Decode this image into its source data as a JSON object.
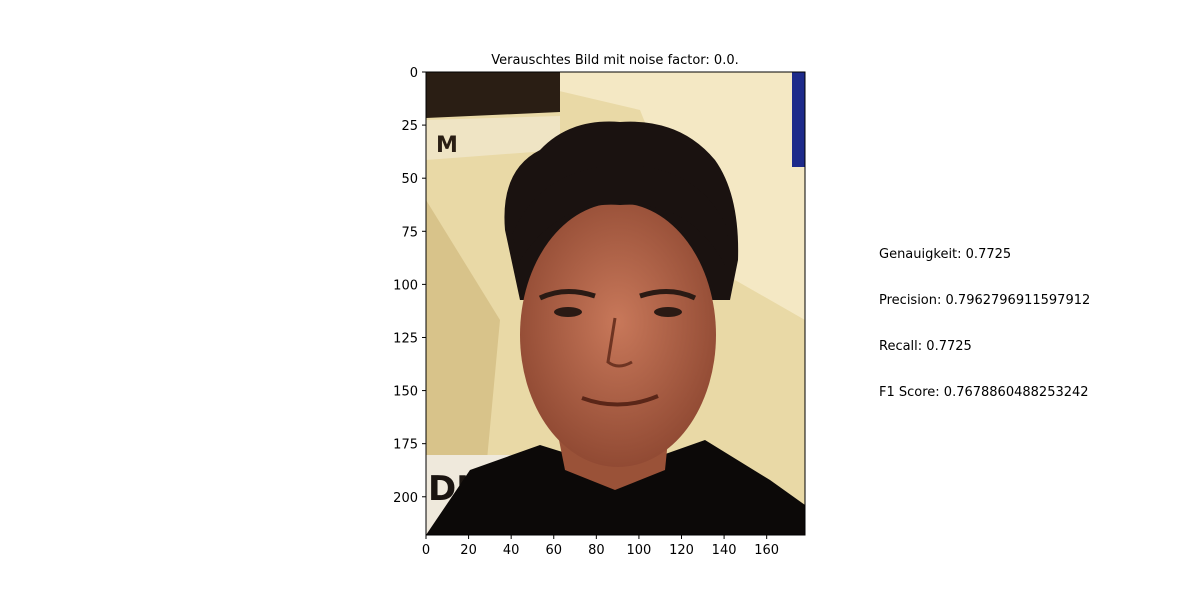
{
  "chart_data": {
    "type": "image",
    "title": "Verauschtes Bild mit noise factor: 0.0.",
    "xlim": [
      0,
      178
    ],
    "ylim": [
      218,
      0
    ],
    "x_ticks": [
      0,
      20,
      40,
      60,
      80,
      100,
      120,
      140,
      160
    ],
    "y_ticks": [
      0,
      25,
      50,
      75,
      100,
      125,
      150,
      175,
      200
    ],
    "image_subject": "face-photo"
  },
  "metrics": {
    "accuracy": "Genauigkeit: 0.7725",
    "precision": "Precision: 0.7962796911597912",
    "recall": "Recall: 0.7725",
    "f1": "F1 Score: 0.7678860488253242"
  },
  "colors": {
    "background_beige": "#e9d9a6",
    "skin": "#b8674a",
    "hair": "#1a1210",
    "shirt": "#0c0908",
    "accent_blue": "#1d2a8a"
  }
}
